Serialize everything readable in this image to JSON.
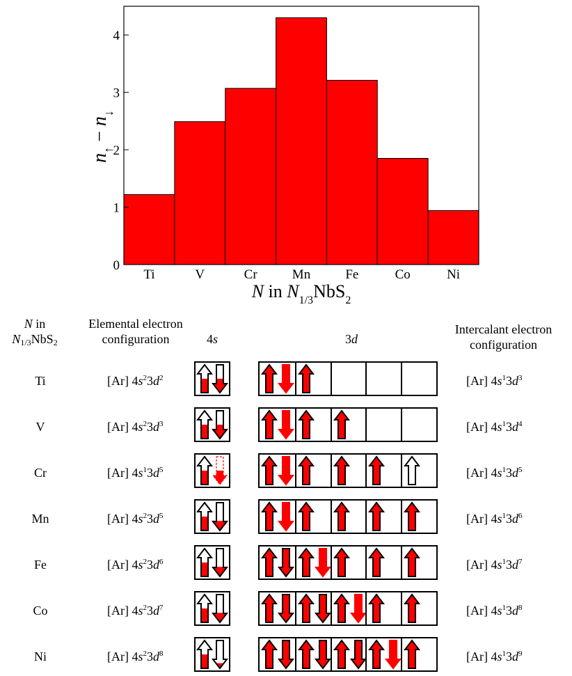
{
  "chart_data": {
    "type": "bar",
    "title": "",
    "ylabel_parts": [
      "n",
      "↑",
      " − ",
      "n",
      "↓"
    ],
    "xlabel_parts": [
      "N",
      " in ",
      "N",
      "1/3",
      "NbS",
      "2"
    ],
    "categories": [
      "Ti",
      "V",
      "Cr",
      "Mn",
      "Fe",
      "Co",
      "Ni"
    ],
    "values": [
      1.22,
      2.49,
      3.07,
      4.3,
      3.21,
      1.85,
      0.94
    ],
    "ylim": [
      0,
      4.5
    ],
    "yticks": [
      "0",
      "1",
      "2",
      "3",
      "4"
    ],
    "bar_color": "#ff0000",
    "grid": false
  },
  "table": {
    "headers": {
      "n_in_1": "N",
      "n_in_2": " in",
      "n_in_3": "N",
      "n_in_4": "1/3",
      "n_in_5": "NbS",
      "n_in_6": "2",
      "elemental_1": "Elemental electron",
      "elemental_2": "configuration",
      "s4_num": "4",
      "s4_s": "s",
      "d3_num": "3",
      "d3_d": "d",
      "intercalant_1": "Intercalant electron",
      "intercalant_2": "configuration"
    },
    "arrow_color": "#ff0000",
    "rows": [
      {
        "element": "Ti",
        "el_ar": "[Ar] 4",
        "el_s": "s",
        "el_s_exp": "2",
        "el_mid": "3",
        "el_d": "d",
        "el_d_exp": "2",
        "ic_ar": "[Ar] 4",
        "ic_s": "s",
        "ic_s_exp": "1",
        "ic_mid": "3",
        "ic_d": "d",
        "ic_d_exp": "3",
        "s_up_fill": 0.5,
        "s_down_fill": 0.5,
        "s_down_dashed": false,
        "d": [
          [
            "UF",
            "DR"
          ],
          [
            "UF"
          ],
          [],
          [],
          []
        ]
      },
      {
        "element": "V",
        "el_ar": "[Ar] 4",
        "el_s": "s",
        "el_s_exp": "2",
        "el_mid": "3",
        "el_d": "d",
        "el_d_exp": "3",
        "ic_ar": "[Ar] 4",
        "ic_s": "s",
        "ic_s_exp": "1",
        "ic_mid": "3",
        "ic_d": "d",
        "ic_d_exp": "4",
        "s_up_fill": 0.5,
        "s_down_fill": 0.5,
        "s_down_dashed": false,
        "d": [
          [
            "UF",
            "DR"
          ],
          [
            "UF"
          ],
          [
            "UF"
          ],
          [],
          []
        ]
      },
      {
        "element": "Cr",
        "el_ar": "[Ar] 4",
        "el_s": "s",
        "el_s_exp": "1",
        "el_mid": "3",
        "el_d": "d",
        "el_d_exp": "5",
        "ic_ar": "[Ar] 4",
        "ic_s": "s",
        "ic_s_exp": "1",
        "ic_mid": "3",
        "ic_d": "d",
        "ic_d_exp": "5",
        "s_up_fill": 0.5,
        "s_down_fill": 0.5,
        "s_down_dashed": true,
        "d": [
          [
            "UF",
            "DR"
          ],
          [
            "UF"
          ],
          [
            "UF"
          ],
          [
            "UF"
          ],
          [
            "UE"
          ]
        ]
      },
      {
        "element": "Mn",
        "el_ar": "[Ar] 4",
        "el_s": "s",
        "el_s_exp": "2",
        "el_mid": "3",
        "el_d": "d",
        "el_d_exp": "5",
        "ic_ar": "[Ar] 4",
        "ic_s": "s",
        "ic_s_exp": "1",
        "ic_mid": "3",
        "ic_d": "d",
        "ic_d_exp": "6",
        "s_up_fill": 0.5,
        "s_down_fill": 0.35,
        "s_down_dashed": false,
        "d": [
          [
            "UF",
            "DR"
          ],
          [
            "UF"
          ],
          [
            "UF"
          ],
          [
            "UF"
          ],
          [
            "UF"
          ]
        ]
      },
      {
        "element": "Fe",
        "el_ar": "[Ar] 4",
        "el_s": "s",
        "el_s_exp": "2",
        "el_mid": "3",
        "el_d": "d",
        "el_d_exp": "6",
        "ic_ar": "[Ar] 4",
        "ic_s": "s",
        "ic_s_exp": "1",
        "ic_mid": "3",
        "ic_d": "d",
        "ic_d_exp": "7",
        "s_up_fill": 0.5,
        "s_down_fill": 0.35,
        "s_down_dashed": false,
        "d": [
          [
            "UF",
            "DF"
          ],
          [
            "UF",
            "DR"
          ],
          [
            "UF"
          ],
          [
            "UF"
          ],
          [
            "UF"
          ]
        ]
      },
      {
        "element": "Co",
        "el_ar": "[Ar] 4",
        "el_s": "s",
        "el_s_exp": "2",
        "el_mid": "3",
        "el_d": "d",
        "el_d_exp": "7",
        "ic_ar": "[Ar] 4",
        "ic_s": "s",
        "ic_s_exp": "1",
        "ic_mid": "3",
        "ic_d": "d",
        "ic_d_exp": "8",
        "s_up_fill": 0.5,
        "s_down_fill": 0.35,
        "s_down_dashed": false,
        "d": [
          [
            "UF",
            "DF"
          ],
          [
            "UF",
            "DF"
          ],
          [
            "UF",
            "DR"
          ],
          [
            "UF"
          ],
          [
            "UF"
          ]
        ]
      },
      {
        "element": "Ni",
        "el_ar": "[Ar] 4",
        "el_s": "s",
        "el_s_exp": "2",
        "el_mid": "3",
        "el_d": "d",
        "el_d_exp": "8",
        "ic_ar": "[Ar] 4",
        "ic_s": "s",
        "ic_s_exp": "1",
        "ic_mid": "3",
        "ic_d": "d",
        "ic_d_exp": "9",
        "s_up_fill": 0.5,
        "s_down_fill": 0.2,
        "s_down_dashed": false,
        "d": [
          [
            "UF",
            "DF"
          ],
          [
            "UF",
            "DF"
          ],
          [
            "UF",
            "DF"
          ],
          [
            "UF",
            "DR"
          ],
          [
            "UF"
          ]
        ]
      }
    ]
  }
}
